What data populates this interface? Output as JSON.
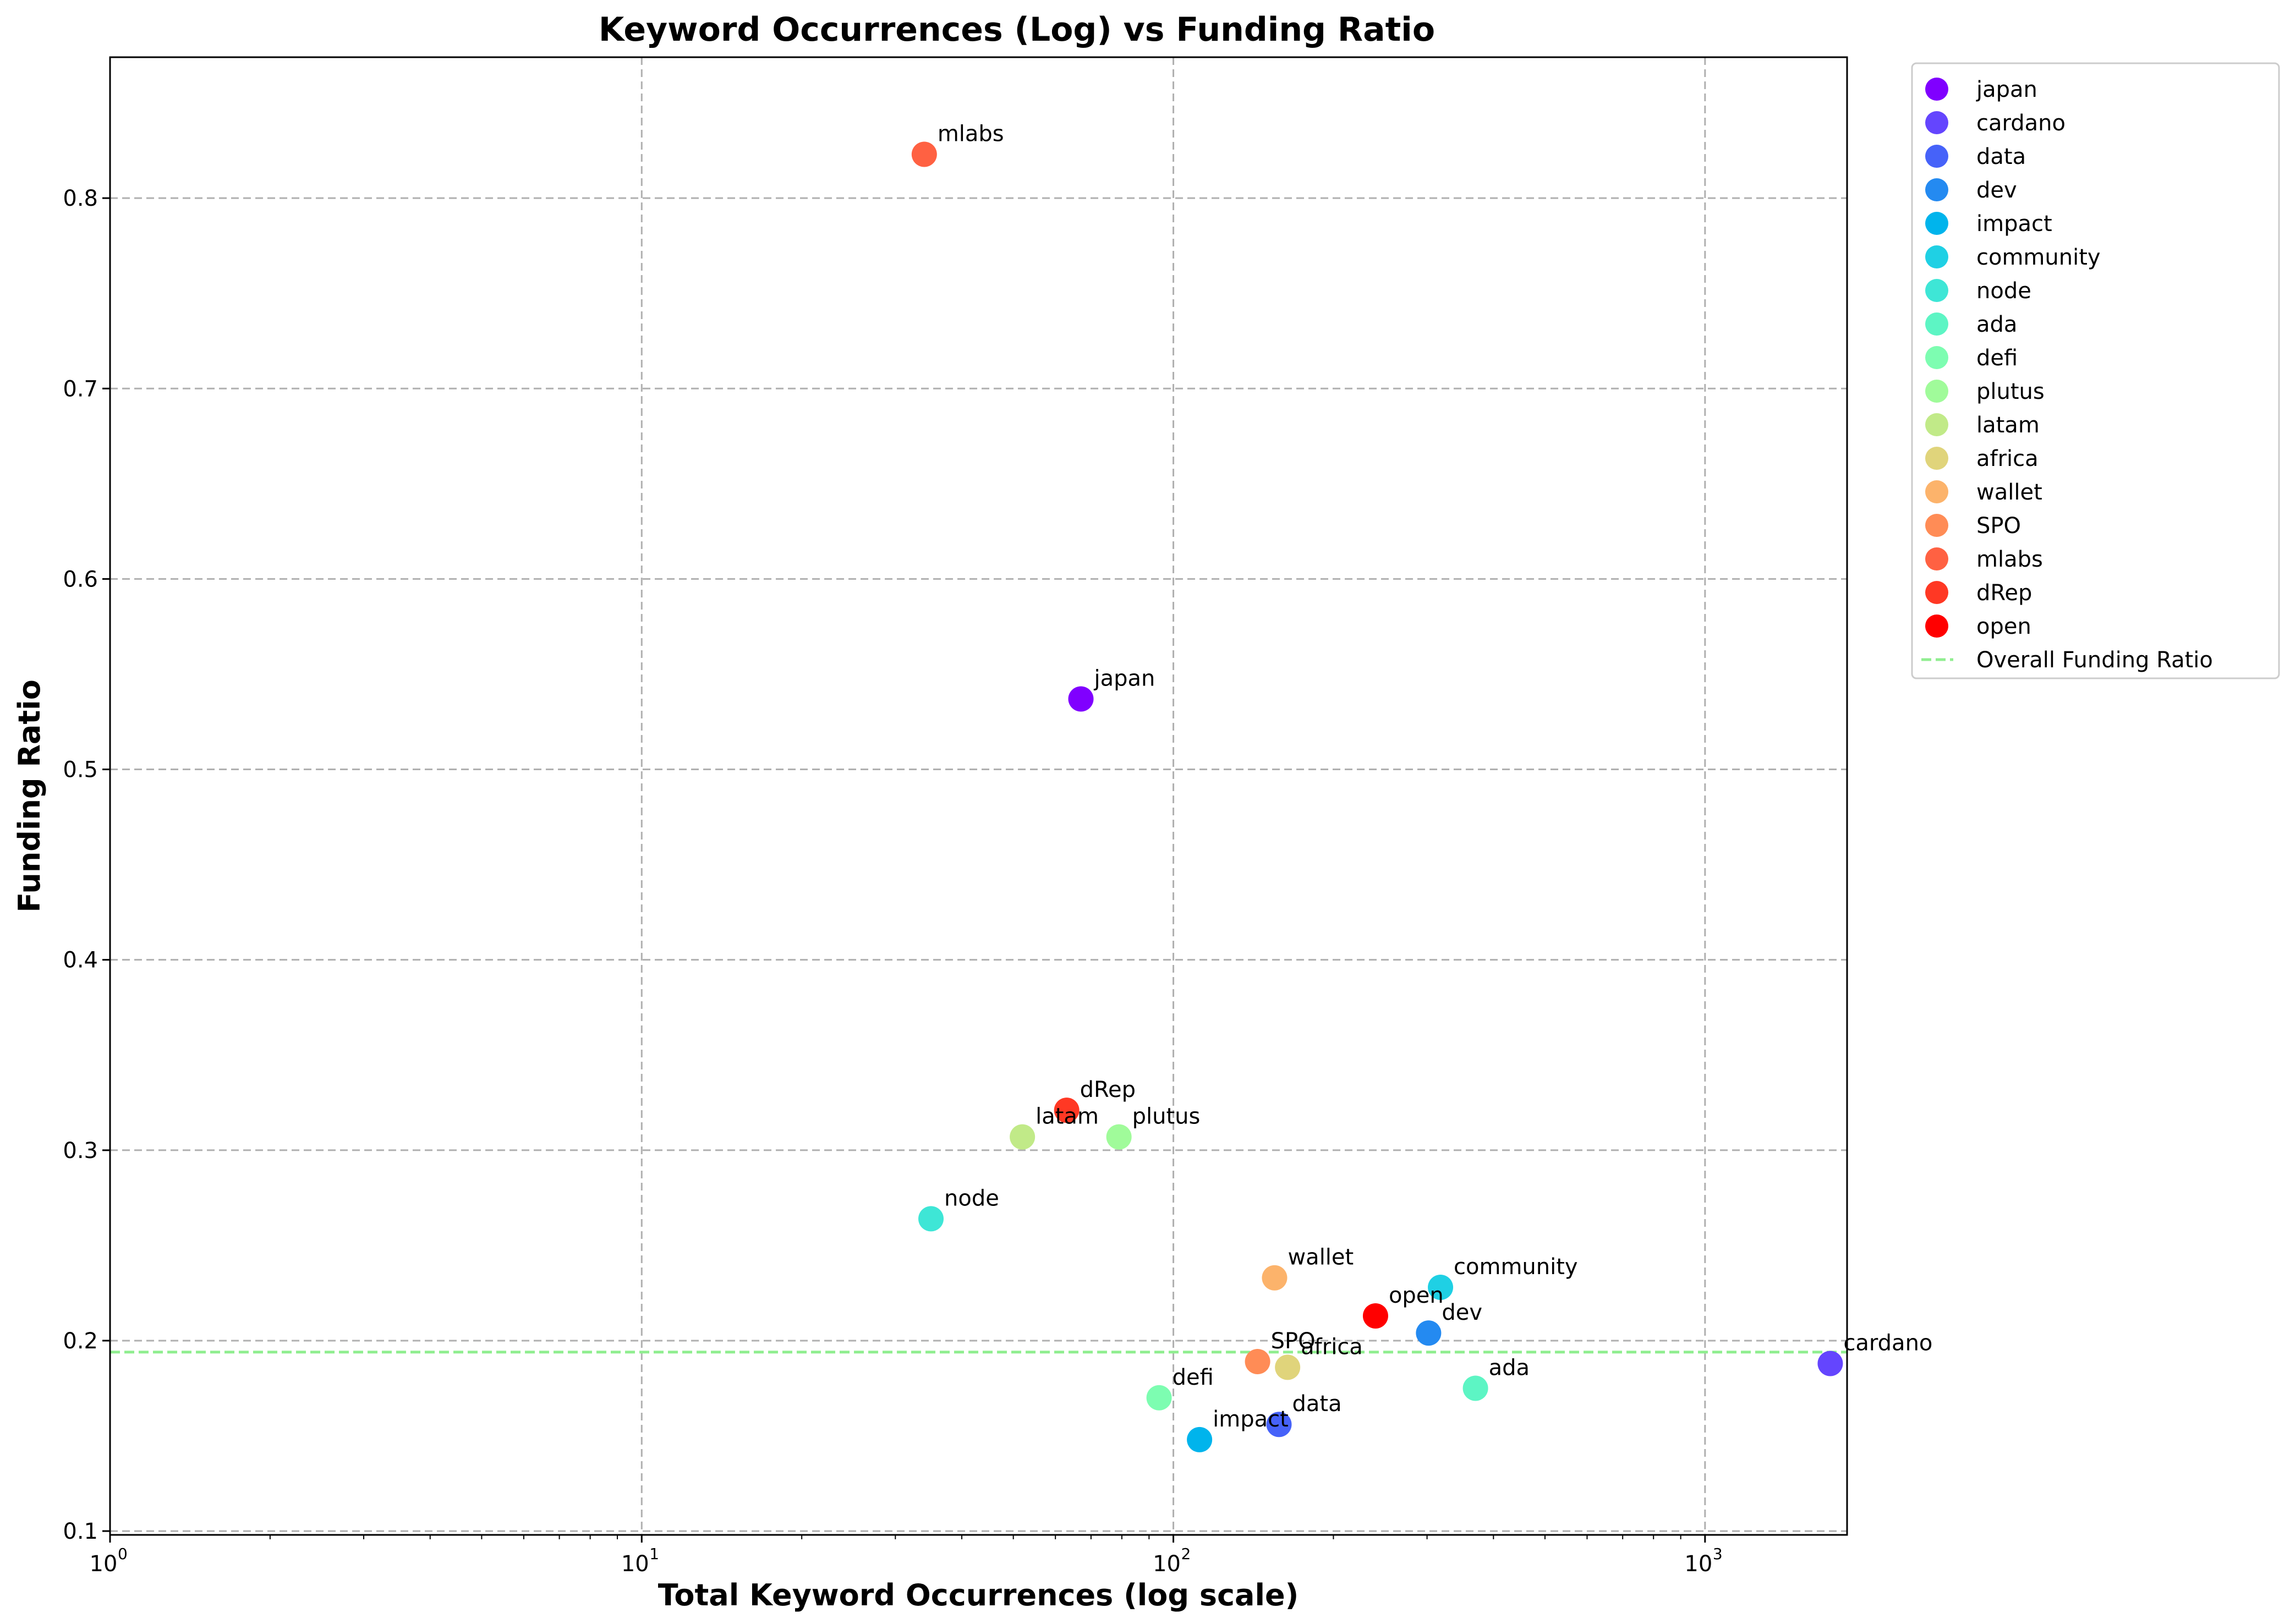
{
  "chart_data": {
    "type": "scatter",
    "title": "Keyword Occurrences (Log) vs Funding Ratio",
    "xlabel": "Total Keyword Occurrences (log scale)",
    "ylabel": "Funding Ratio",
    "xscale": "log",
    "xlim": [
      1,
      1850
    ],
    "ylim": [
      0.098,
      0.874
    ],
    "x_ticks": [
      {
        "value": 1,
        "base": "10",
        "exp": "0"
      },
      {
        "value": 10,
        "base": "10",
        "exp": "1"
      },
      {
        "value": 100,
        "base": "10",
        "exp": "2"
      },
      {
        "value": 1000,
        "base": "10",
        "exp": "3"
      }
    ],
    "y_ticks": [
      {
        "value": 0.1,
        "label": "0.1"
      },
      {
        "value": 0.2,
        "label": "0.2"
      },
      {
        "value": 0.3,
        "label": "0.3"
      },
      {
        "value": 0.4,
        "label": "0.4"
      },
      {
        "value": 0.5,
        "label": "0.5"
      },
      {
        "value": 0.6,
        "label": "0.6"
      },
      {
        "value": 0.7,
        "label": "0.7"
      },
      {
        "value": 0.8,
        "label": "0.8"
      }
    ],
    "grid": true,
    "legend_position": "outside-top-right",
    "series": [
      {
        "name": "japan",
        "x": 67,
        "y": 0.537,
        "color": "#8000ff"
      },
      {
        "name": "cardano",
        "x": 1720,
        "y": 0.188,
        "color": "#6445fe"
      },
      {
        "name": "data",
        "x": 158,
        "y": 0.156,
        "color": "#4662f9"
      },
      {
        "name": "dev",
        "x": 302,
        "y": 0.204,
        "color": "#248af1"
      },
      {
        "name": "impact",
        "x": 112,
        "y": 0.148,
        "color": "#00b4ec"
      },
      {
        "name": "community",
        "x": 318,
        "y": 0.228,
        "color": "#1fd0e4"
      },
      {
        "name": "node",
        "x": 35,
        "y": 0.264,
        "color": "#3ee6d6"
      },
      {
        "name": "ada",
        "x": 370,
        "y": 0.175,
        "color": "#5df5c4"
      },
      {
        "name": "defi",
        "x": 94,
        "y": 0.17,
        "color": "#7dfdb1"
      },
      {
        "name": "plutus",
        "x": 79,
        "y": 0.307,
        "color": "#a0fb9a"
      },
      {
        "name": "latam",
        "x": 52,
        "y": 0.307,
        "color": "#c1ea88"
      },
      {
        "name": "africa",
        "x": 164,
        "y": 0.186,
        "color": "#e0d47b"
      },
      {
        "name": "wallet",
        "x": 155,
        "y": 0.233,
        "color": "#fcb36b"
      },
      {
        "name": "SPO",
        "x": 144,
        "y": 0.189,
        "color": "#ff8c56"
      },
      {
        "name": "mlabs",
        "x": 34,
        "y": 0.823,
        "color": "#ff6142"
      },
      {
        "name": "dRep",
        "x": 63,
        "y": 0.321,
        "color": "#ff3824"
      },
      {
        "name": "open",
        "x": 240,
        "y": 0.213,
        "color": "#ff0000"
      }
    ],
    "reference_line": {
      "name": "Overall Funding Ratio",
      "y": 0.194,
      "color": "#90ee90",
      "style": "dashed"
    }
  }
}
